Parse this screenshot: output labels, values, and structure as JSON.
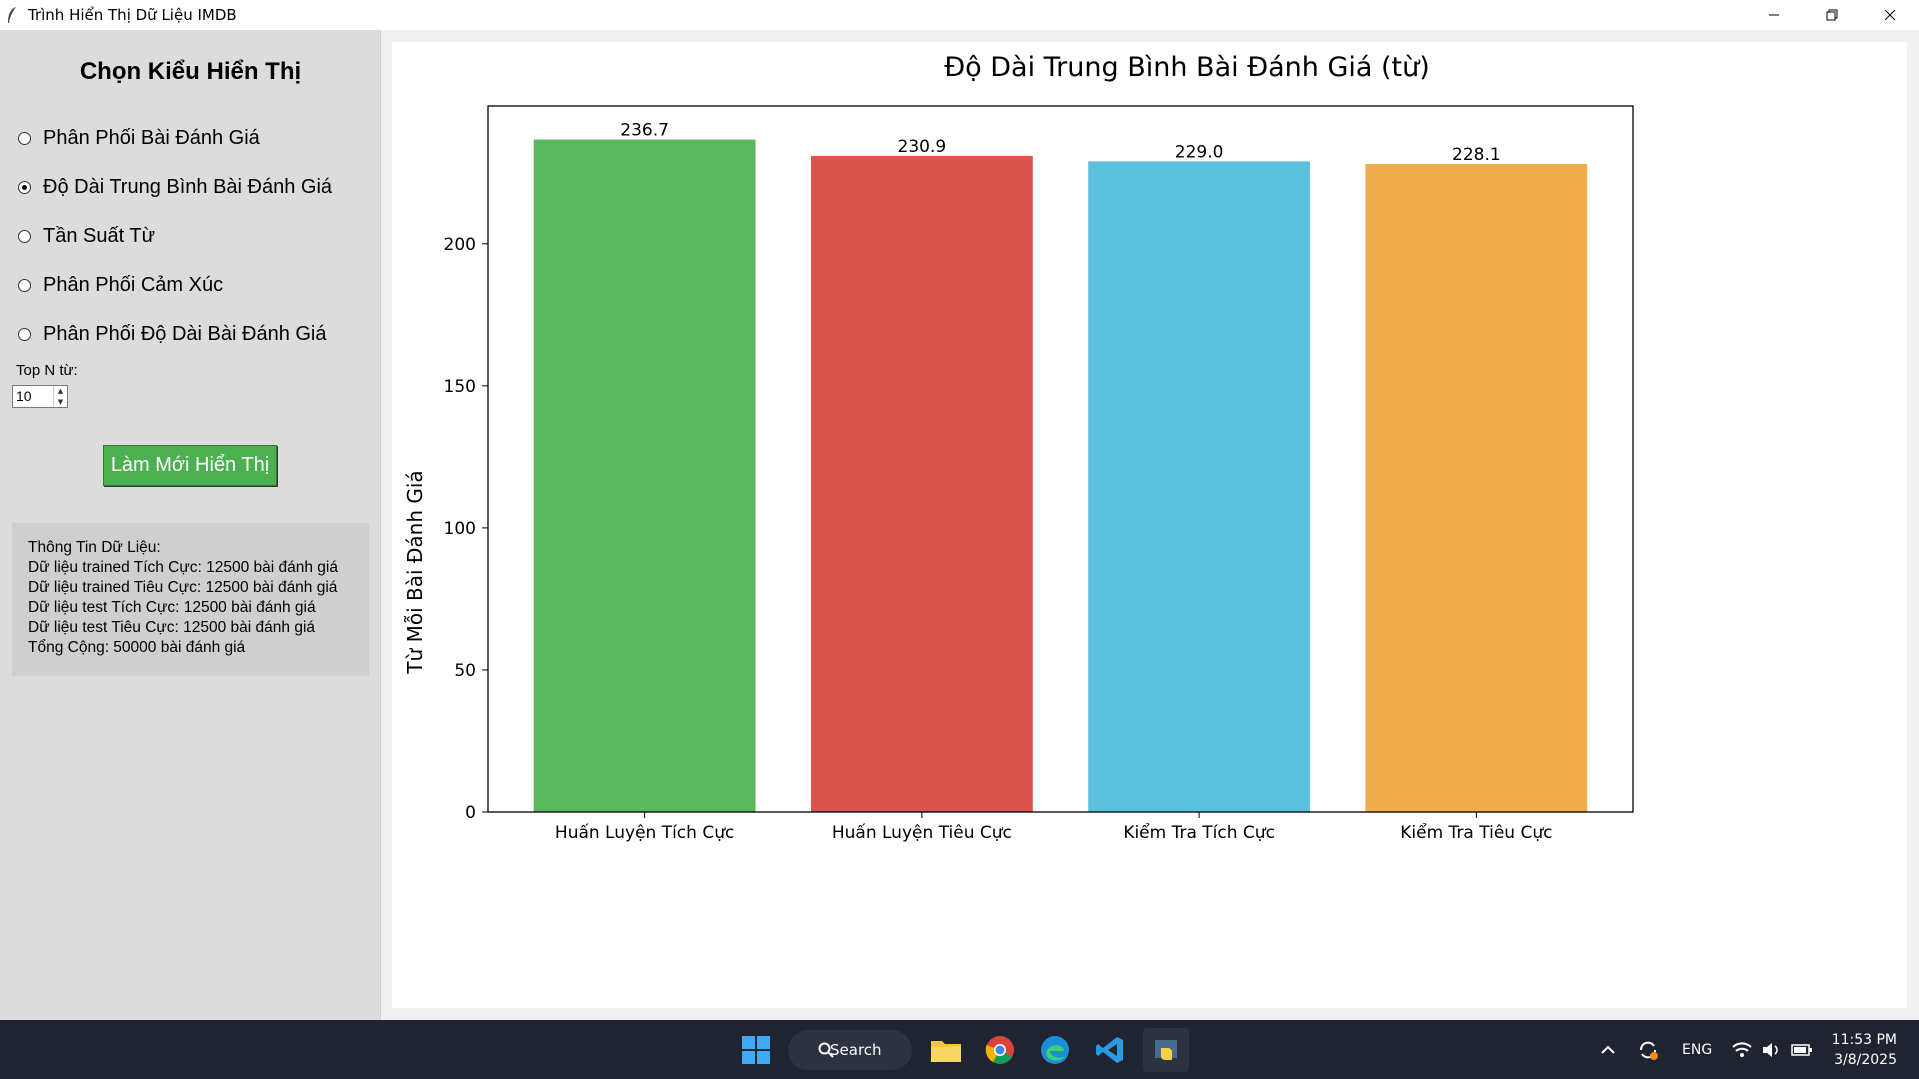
{
  "window": {
    "title": "Trình Hiển Thị Dữ Liệu IMDB"
  },
  "panel": {
    "heading": "Chọn Kiểu Hiển Thị",
    "options": [
      {
        "label": "Phân Phối Bài Đánh Giá",
        "checked": false
      },
      {
        "label": "Độ Dài Trung Bình Bài Đánh Giá",
        "checked": true
      },
      {
        "label": "Tần Suất Từ",
        "checked": false
      },
      {
        "label": "Phân Phối Cảm Xúc",
        "checked": false
      },
      {
        "label": "Phân Phối Độ Dài Bài Đánh Giá",
        "checked": false
      }
    ],
    "topn_label": "Top N từ:",
    "topn_value": "10",
    "refresh_label": "Làm Mới Hiển Thị",
    "info_lines": [
      "Thông Tin Dữ Liệu:",
      "Dữ liệu trained Tích Cực: 12500 bài đánh giá",
      "Dữ liệu trained Tiêu Cực: 12500 bài đánh giá",
      "Dữ liệu test Tích Cực: 12500 bài đánh giá",
      "Dữ liệu test Tiêu Cực: 12500 bài đánh giá",
      "Tổng Cộng: 50000 bài đánh giá"
    ]
  },
  "chart_data": {
    "type": "bar",
    "title": "Độ Dài Trung Bình Bài Đánh Giá (từ)",
    "xlabel": "",
    "ylabel": "Từ Mỗi Bài Đánh Giá",
    "categories": [
      "Huấn Luyện Tích Cực",
      "Huấn Luyện Tiêu Cực",
      "Kiểm Tra Tích Cực",
      "Kiểm Tra Tiêu Cực"
    ],
    "values": [
      236.7,
      230.9,
      229.0,
      228.1
    ],
    "value_labels": [
      "236.7",
      "230.9",
      "229.0",
      "228.1"
    ],
    "colors": [
      "#5cb85c",
      "#d9534f",
      "#5bc0de",
      "#f0ad4e"
    ],
    "ylim": [
      0,
      248.5
    ],
    "yticks": [
      0,
      50,
      100,
      150,
      200
    ],
    "grid": false
  },
  "taskbar": {
    "search_label": "Search",
    "lang": "ENG",
    "time": "11:53 PM",
    "date": "3/8/2025"
  }
}
